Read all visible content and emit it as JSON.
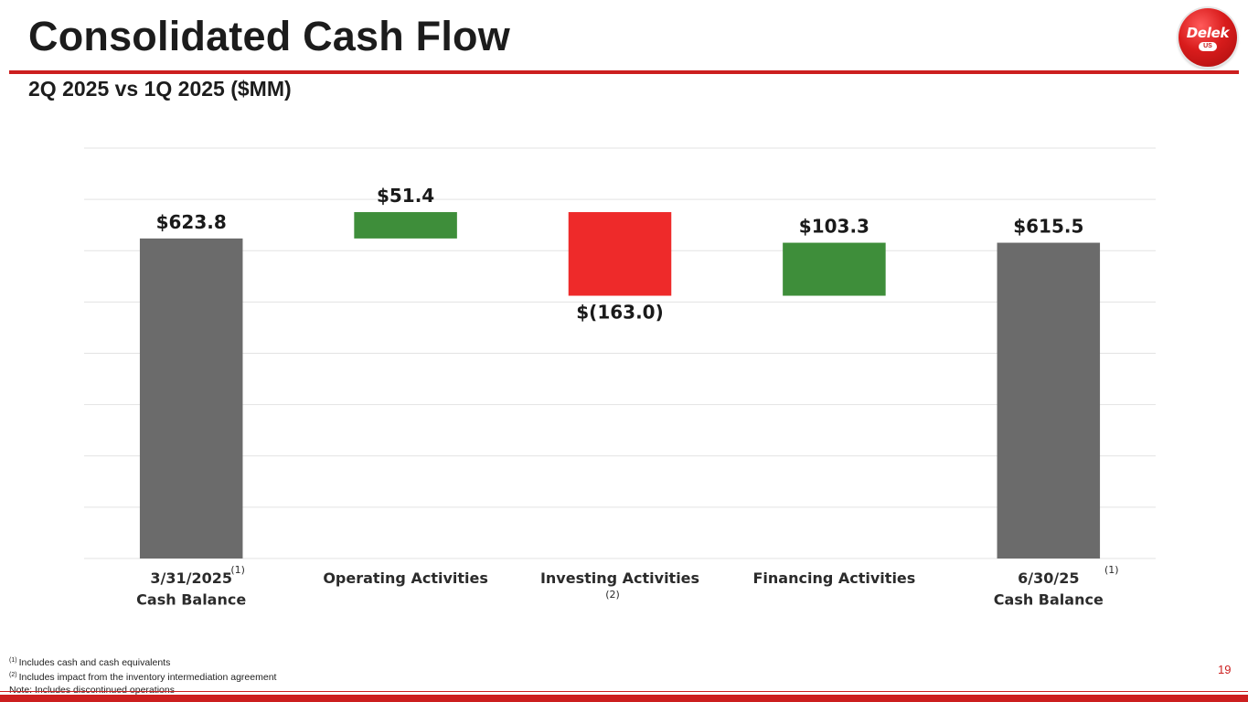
{
  "header": {
    "title": "Consolidated Cash Flow",
    "subtitle": "2Q 2025 vs 1Q 2025 ($MM)",
    "logo_text": "Delek",
    "logo_tag": "US"
  },
  "chart_data": {
    "type": "bar",
    "subtype": "waterfall",
    "title": "",
    "categories": [
      "3/31/2025 Cash Balance",
      "Operating Activities",
      "Investing Activities",
      "Financing Activities",
      "6/30/25 Cash Balance"
    ],
    "values": [
      623.8,
      51.4,
      -163.0,
      103.3,
      615.5
    ],
    "value_labels": [
      "$623.8",
      "$51.4",
      "$(163.0)",
      "$103.3",
      "$615.5"
    ],
    "category_label_lines": [
      [
        "3/31/2025",
        "Cash Balance"
      ],
      [
        "Operating Activities"
      ],
      [
        "Investing Activities"
      ],
      [
        "Financing Activities"
      ],
      [
        "6/30/25",
        "Cash Balance"
      ]
    ],
    "footnote_markers": [
      "(1)",
      "",
      "(2)",
      "",
      "(1)"
    ],
    "bar_kinds": [
      "total",
      "increase",
      "decrease",
      "increase",
      "total"
    ],
    "ylim": [
      0,
      800
    ],
    "gridline_step": 100,
    "grid": true,
    "xlabel": "",
    "ylabel": "",
    "colors": {
      "total": "#6b6b6b",
      "increase": "#3e8e3a",
      "decrease": "#ee2a2a",
      "gridline": "#e3e3e3"
    }
  },
  "footnotes": [
    {
      "marker": "(1)",
      "text": "Includes cash and cash equivalents"
    },
    {
      "marker": "(2)",
      "text": "Includes impact from the inventory intermediation agreement"
    },
    {
      "marker": "",
      "text": "Note: Includes discontinued operations"
    }
  ],
  "page_number": "19",
  "colors": {
    "accent": "#cc1f1f"
  }
}
